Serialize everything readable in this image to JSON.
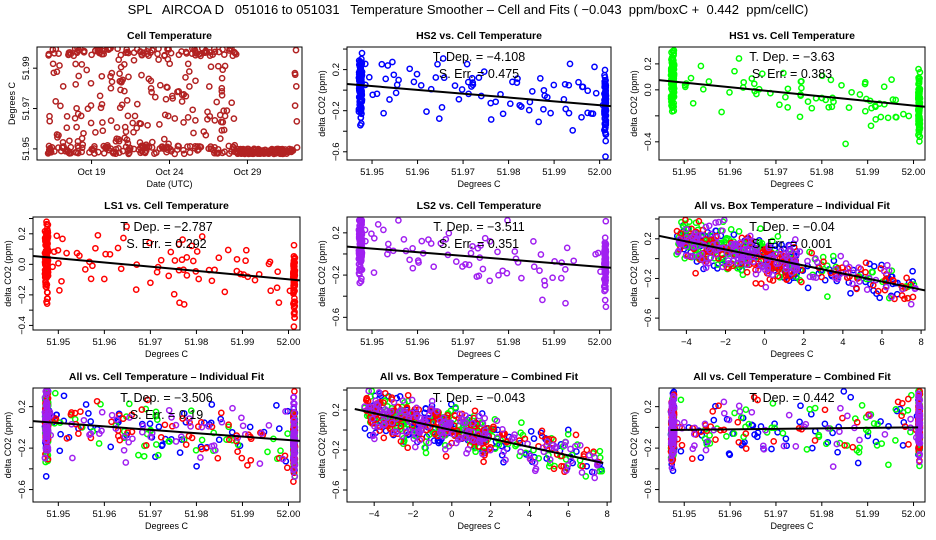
{
  "title": "SPL   AIRCOA D   051016 to 051031   Temperature Smoother – Cell and Fits ( −0.043  ppm/boxC +  0.442  ppm/cellC)",
  "colors": {
    "cell_temp": "#b22222",
    "HS2": "#0000ff",
    "HS1": "#00ff00",
    "LS1": "#ff0000",
    "LS2": "#a020f0",
    "fit_line": "#000000"
  },
  "chart_data": [
    {
      "id": "cell-temperature",
      "type": "scatter",
      "title": "Cell Temperature",
      "xlabel": "Date (UTC)",
      "ylabel": "Degrees C",
      "x_kind": "date",
      "xlim": [
        15.5,
        32.5
      ],
      "ylim": [
        51.9445,
        52.0005
      ],
      "xticks": [
        {
          "v": 19,
          "label": "Oct 19"
        },
        {
          "v": 24,
          "label": "Oct 24"
        },
        {
          "v": 29,
          "label": "Oct 29"
        }
      ],
      "yticks": [
        {
          "v": 51.95,
          "label": "51.95"
        },
        {
          "v": 51.97,
          "label": "51.97"
        },
        {
          "v": 51.99,
          "label": "51.99"
        }
      ],
      "series": [
        {
          "name": "Cell",
          "color_key": "cell_temp",
          "pattern": "cell"
        }
      ]
    },
    {
      "id": "hs2-vs-cell",
      "type": "scatter",
      "title": "HS2 vs. Cell Temperature",
      "xlabel": "Degrees C",
      "ylabel": "delta CO2 (ppm)",
      "xlim": [
        51.9445,
        52.0025
      ],
      "ylim": [
        -0.68,
        0.42
      ],
      "xticks": [
        {
          "v": 51.95,
          "label": "51.95"
        },
        {
          "v": 51.96,
          "label": "51.96"
        },
        {
          "v": 51.97,
          "label": "51.97"
        },
        {
          "v": 51.98,
          "label": "51.98"
        },
        {
          "v": 51.99,
          "label": "51.99"
        },
        {
          "v": 52.0,
          "label": "52.00"
        }
      ],
      "yticks": [
        {
          "v": -0.6,
          "label": "−0.6"
        },
        {
          "v": -0.4,
          "label": ""
        },
        {
          "v": -0.2,
          "label": "−0.2"
        },
        {
          "v": 0.0,
          "label": ""
        },
        {
          "v": 0.2,
          "label": "0.2"
        },
        {
          "v": 0.4,
          "label": ""
        }
      ],
      "annotation": [
        "T. Dep. =  −4.108",
        "S. Err. = 0.475"
      ],
      "fit": {
        "x": [
          51.9445,
          52.0025
        ],
        "y": [
          0.06,
          -0.155
        ]
      },
      "series": [
        {
          "name": "HS2",
          "color_key": "HS2",
          "pattern": "cellx"
        }
      ]
    },
    {
      "id": "hs1-vs-cell",
      "type": "scatter",
      "title": "HS1 vs. Cell Temperature",
      "xlabel": "Degrees C",
      "ylabel": "delta CO2 (ppm)",
      "xlim": [
        51.9445,
        52.0025
      ],
      "ylim": [
        -0.54,
        0.33
      ],
      "xticks": [
        {
          "v": 51.95,
          "label": "51.95"
        },
        {
          "v": 51.96,
          "label": "51.96"
        },
        {
          "v": 51.97,
          "label": "51.97"
        },
        {
          "v": 51.98,
          "label": "51.98"
        },
        {
          "v": 51.99,
          "label": "51.99"
        },
        {
          "v": 52.0,
          "label": "52.00"
        }
      ],
      "yticks": [
        {
          "v": -0.4,
          "label": "−0.4"
        },
        {
          "v": -0.2,
          "label": ""
        },
        {
          "v": 0.0,
          "label": "0.0"
        },
        {
          "v": 0.2,
          "label": "0.2"
        }
      ],
      "annotation": [
        "T. Dep. =  −3.63",
        "S. Err. =  0.383"
      ],
      "fit": {
        "x": [
          51.9445,
          52.0025
        ],
        "y": [
          0.075,
          -0.13
        ]
      },
      "series": [
        {
          "name": "HS1",
          "color_key": "HS1",
          "pattern": "cellx"
        }
      ]
    },
    {
      "id": "ls1-vs-cell",
      "type": "scatter",
      "title": "LS1 vs. Cell Temperature",
      "xlabel": "Degrees C",
      "ylabel": "delta CO2 (ppm)",
      "xlim": [
        51.9445,
        52.0025
      ],
      "ylim": [
        -0.43,
        0.31
      ],
      "xticks": [
        {
          "v": 51.95,
          "label": "51.95"
        },
        {
          "v": 51.96,
          "label": "51.96"
        },
        {
          "v": 51.97,
          "label": "51.97"
        },
        {
          "v": 51.98,
          "label": "51.98"
        },
        {
          "v": 51.99,
          "label": "51.99"
        },
        {
          "v": 52.0,
          "label": "52.00"
        }
      ],
      "yticks": [
        {
          "v": -0.4,
          "label": "−0.4"
        },
        {
          "v": -0.3,
          "label": ""
        },
        {
          "v": -0.2,
          "label": "−0.2"
        },
        {
          "v": -0.1,
          "label": ""
        },
        {
          "v": 0.0,
          "label": "0.0"
        },
        {
          "v": 0.1,
          "label": ""
        },
        {
          "v": 0.2,
          "label": "0.2"
        },
        {
          "v": 0.3,
          "label": ""
        }
      ],
      "annotation": [
        "T. Dep. =  −2.787",
        "S. Err. =  0.292"
      ],
      "fit": {
        "x": [
          51.9445,
          52.0025
        ],
        "y": [
          0.055,
          -0.105
        ]
      },
      "series": [
        {
          "name": "LS1",
          "color_key": "LS1",
          "pattern": "cellx"
        }
      ]
    },
    {
      "id": "ls2-vs-cell",
      "type": "scatter",
      "title": "LS2 vs. Cell Temperature",
      "xlabel": "Degrees C",
      "ylabel": "delta CO2 (ppm)",
      "xlim": [
        51.9445,
        52.0025
      ],
      "ylim": [
        -0.72,
        0.35
      ],
      "xticks": [
        {
          "v": 51.95,
          "label": "51.95"
        },
        {
          "v": 51.96,
          "label": "51.96"
        },
        {
          "v": 51.97,
          "label": "51.97"
        },
        {
          "v": 51.98,
          "label": "51.98"
        },
        {
          "v": 51.99,
          "label": "51.99"
        },
        {
          "v": 52.0,
          "label": "52.00"
        }
      ],
      "yticks": [
        {
          "v": -0.6,
          "label": "−0.6"
        },
        {
          "v": -0.4,
          "label": ""
        },
        {
          "v": -0.2,
          "label": "−0.2"
        },
        {
          "v": 0.0,
          "label": ""
        },
        {
          "v": 0.2,
          "label": "0.2"
        }
      ],
      "annotation": [
        "T. Dep. =  −3.511",
        "S. Err. = 0.351"
      ],
      "fit": {
        "x": [
          51.9445,
          52.0025
        ],
        "y": [
          0.07,
          -0.13
        ]
      },
      "series": [
        {
          "name": "LS2",
          "color_key": "LS2",
          "pattern": "cellx"
        }
      ]
    },
    {
      "id": "all-vs-box-individual",
      "type": "scatter",
      "title": "All vs. Box Temperature – Individual Fit",
      "xlabel": "Degrees C",
      "ylabel": "delta CO2 (ppm)",
      "xlim": [
        -5.4,
        8.2
      ],
      "ylim": [
        -0.72,
        0.42
      ],
      "xticks": [
        {
          "v": -4,
          "label": "−4"
        },
        {
          "v": -2,
          "label": "−2"
        },
        {
          "v": 0,
          "label": "0"
        },
        {
          "v": 2,
          "label": "2"
        },
        {
          "v": 4,
          "label": "4"
        },
        {
          "v": 6,
          "label": "6"
        },
        {
          "v": 8,
          "label": "8"
        }
      ],
      "yticks": [
        {
          "v": -0.6,
          "label": "−0.6"
        },
        {
          "v": -0.4,
          "label": ""
        },
        {
          "v": -0.2,
          "label": "−0.2"
        },
        {
          "v": 0.0,
          "label": ""
        },
        {
          "v": 0.2,
          "label": "0.2"
        },
        {
          "v": 0.4,
          "label": ""
        }
      ],
      "annotation": [
        "T. Dep. =  −0.04",
        "S. Err. = 0.001"
      ],
      "fit": {
        "x": [
          -5.4,
          8.2
        ],
        "y": [
          0.23,
          -0.32
        ]
      },
      "series": [
        {
          "name": "HS2",
          "color_key": "HS2",
          "pattern": "box"
        },
        {
          "name": "HS1",
          "color_key": "HS1",
          "pattern": "box"
        },
        {
          "name": "LS1",
          "color_key": "LS1",
          "pattern": "box"
        },
        {
          "name": "LS2",
          "color_key": "LS2",
          "pattern": "box"
        }
      ]
    },
    {
      "id": "all-vs-cell-individual",
      "type": "scatter",
      "title": "All vs. Cell Temperature – Individual Fit",
      "xlabel": "Degrees C",
      "ylabel": "delta CO2 (ppm)",
      "xlim": [
        51.9445,
        52.0025
      ],
      "ylim": [
        -0.72,
        0.38
      ],
      "xticks": [
        {
          "v": 51.95,
          "label": "51.95"
        },
        {
          "v": 51.96,
          "label": "51.96"
        },
        {
          "v": 51.97,
          "label": "51.97"
        },
        {
          "v": 51.98,
          "label": "51.98"
        },
        {
          "v": 51.99,
          "label": "51.99"
        },
        {
          "v": 52.0,
          "label": "52.00"
        }
      ],
      "yticks": [
        {
          "v": -0.6,
          "label": "−0.6"
        },
        {
          "v": -0.4,
          "label": ""
        },
        {
          "v": -0.2,
          "label": "−0.2"
        },
        {
          "v": 0.0,
          "label": ""
        },
        {
          "v": 0.2,
          "label": "0.2"
        }
      ],
      "annotation": [
        "T. Dep. =  −3.506",
        "S. Err. = 0.19"
      ],
      "fit": {
        "x": [
          51.9445,
          52.0025
        ],
        "y": [
          0.06,
          -0.13
        ]
      },
      "series": [
        {
          "name": "HS2",
          "color_key": "HS2",
          "pattern": "cellx"
        },
        {
          "name": "HS1",
          "color_key": "HS1",
          "pattern": "cellx"
        },
        {
          "name": "LS1",
          "color_key": "LS1",
          "pattern": "cellx"
        },
        {
          "name": "LS2",
          "color_key": "LS2",
          "pattern": "cellx"
        }
      ]
    },
    {
      "id": "all-vs-box-combined",
      "type": "scatter",
      "title": "All vs. Box Temperature – Combined Fit",
      "xlabel": "Degrees C",
      "ylabel": "delta CO2 (ppm)",
      "xlim": [
        -5.4,
        8.2
      ],
      "ylim": [
        -0.72,
        0.42
      ],
      "xticks": [
        {
          "v": -4,
          "label": "−4"
        },
        {
          "v": -2,
          "label": "−2"
        },
        {
          "v": 0,
          "label": "0"
        },
        {
          "v": 2,
          "label": "2"
        },
        {
          "v": 4,
          "label": "4"
        },
        {
          "v": 6,
          "label": "6"
        },
        {
          "v": 8,
          "label": "8"
        }
      ],
      "yticks": [
        {
          "v": -0.6,
          "label": "−0.6"
        },
        {
          "v": -0.4,
          "label": ""
        },
        {
          "v": -0.2,
          "label": "−0.2"
        },
        {
          "v": 0.0,
          "label": ""
        },
        {
          "v": 0.2,
          "label": "0.2"
        },
        {
          "v": 0.4,
          "label": ""
        }
      ],
      "annotation": [
        "T. Dep. =  −0.043"
      ],
      "fit": {
        "x": [
          -5.0,
          7.8
        ],
        "y": [
          0.21,
          -0.33
        ]
      },
      "series": [
        {
          "name": "HS2",
          "color_key": "HS2",
          "pattern": "box"
        },
        {
          "name": "HS1",
          "color_key": "HS1",
          "pattern": "box"
        },
        {
          "name": "LS1",
          "color_key": "LS1",
          "pattern": "box"
        },
        {
          "name": "LS2",
          "color_key": "LS2",
          "pattern": "box"
        }
      ]
    },
    {
      "id": "all-vs-cell-combined",
      "type": "scatter",
      "title": "All vs. Cell Temperature – Combined Fit",
      "xlabel": "Degrees C",
      "ylabel": "delta CO2 (ppm)",
      "xlim": [
        51.9445,
        52.0025
      ],
      "ylim": [
        -0.72,
        0.38
      ],
      "xticks": [
        {
          "v": 51.95,
          "label": "51.95"
        },
        {
          "v": 51.96,
          "label": "51.96"
        },
        {
          "v": 51.97,
          "label": "51.97"
        },
        {
          "v": 51.98,
          "label": "51.98"
        },
        {
          "v": 51.99,
          "label": "51.99"
        },
        {
          "v": 52.0,
          "label": "52.00"
        }
      ],
      "yticks": [
        {
          "v": -0.6,
          "label": "−0.6"
        },
        {
          "v": -0.4,
          "label": ""
        },
        {
          "v": -0.2,
          "label": "−0.2"
        },
        {
          "v": 0.0,
          "label": ""
        },
        {
          "v": 0.2,
          "label": "0.2"
        }
      ],
      "annotation": [
        "T. Dep. =  0.442"
      ],
      "fit": {
        "x": [
          51.947,
          52.001
        ],
        "y": [
          -0.025,
          0.0
        ]
      },
      "series": [
        {
          "name": "HS2",
          "color_key": "HS2",
          "pattern": "cellx"
        },
        {
          "name": "HS1",
          "color_key": "HS1",
          "pattern": "cellx"
        },
        {
          "name": "LS1",
          "color_key": "LS1",
          "pattern": "cellx"
        },
        {
          "name": "LS2",
          "color_key": "LS2",
          "pattern": "cellx"
        }
      ]
    }
  ]
}
